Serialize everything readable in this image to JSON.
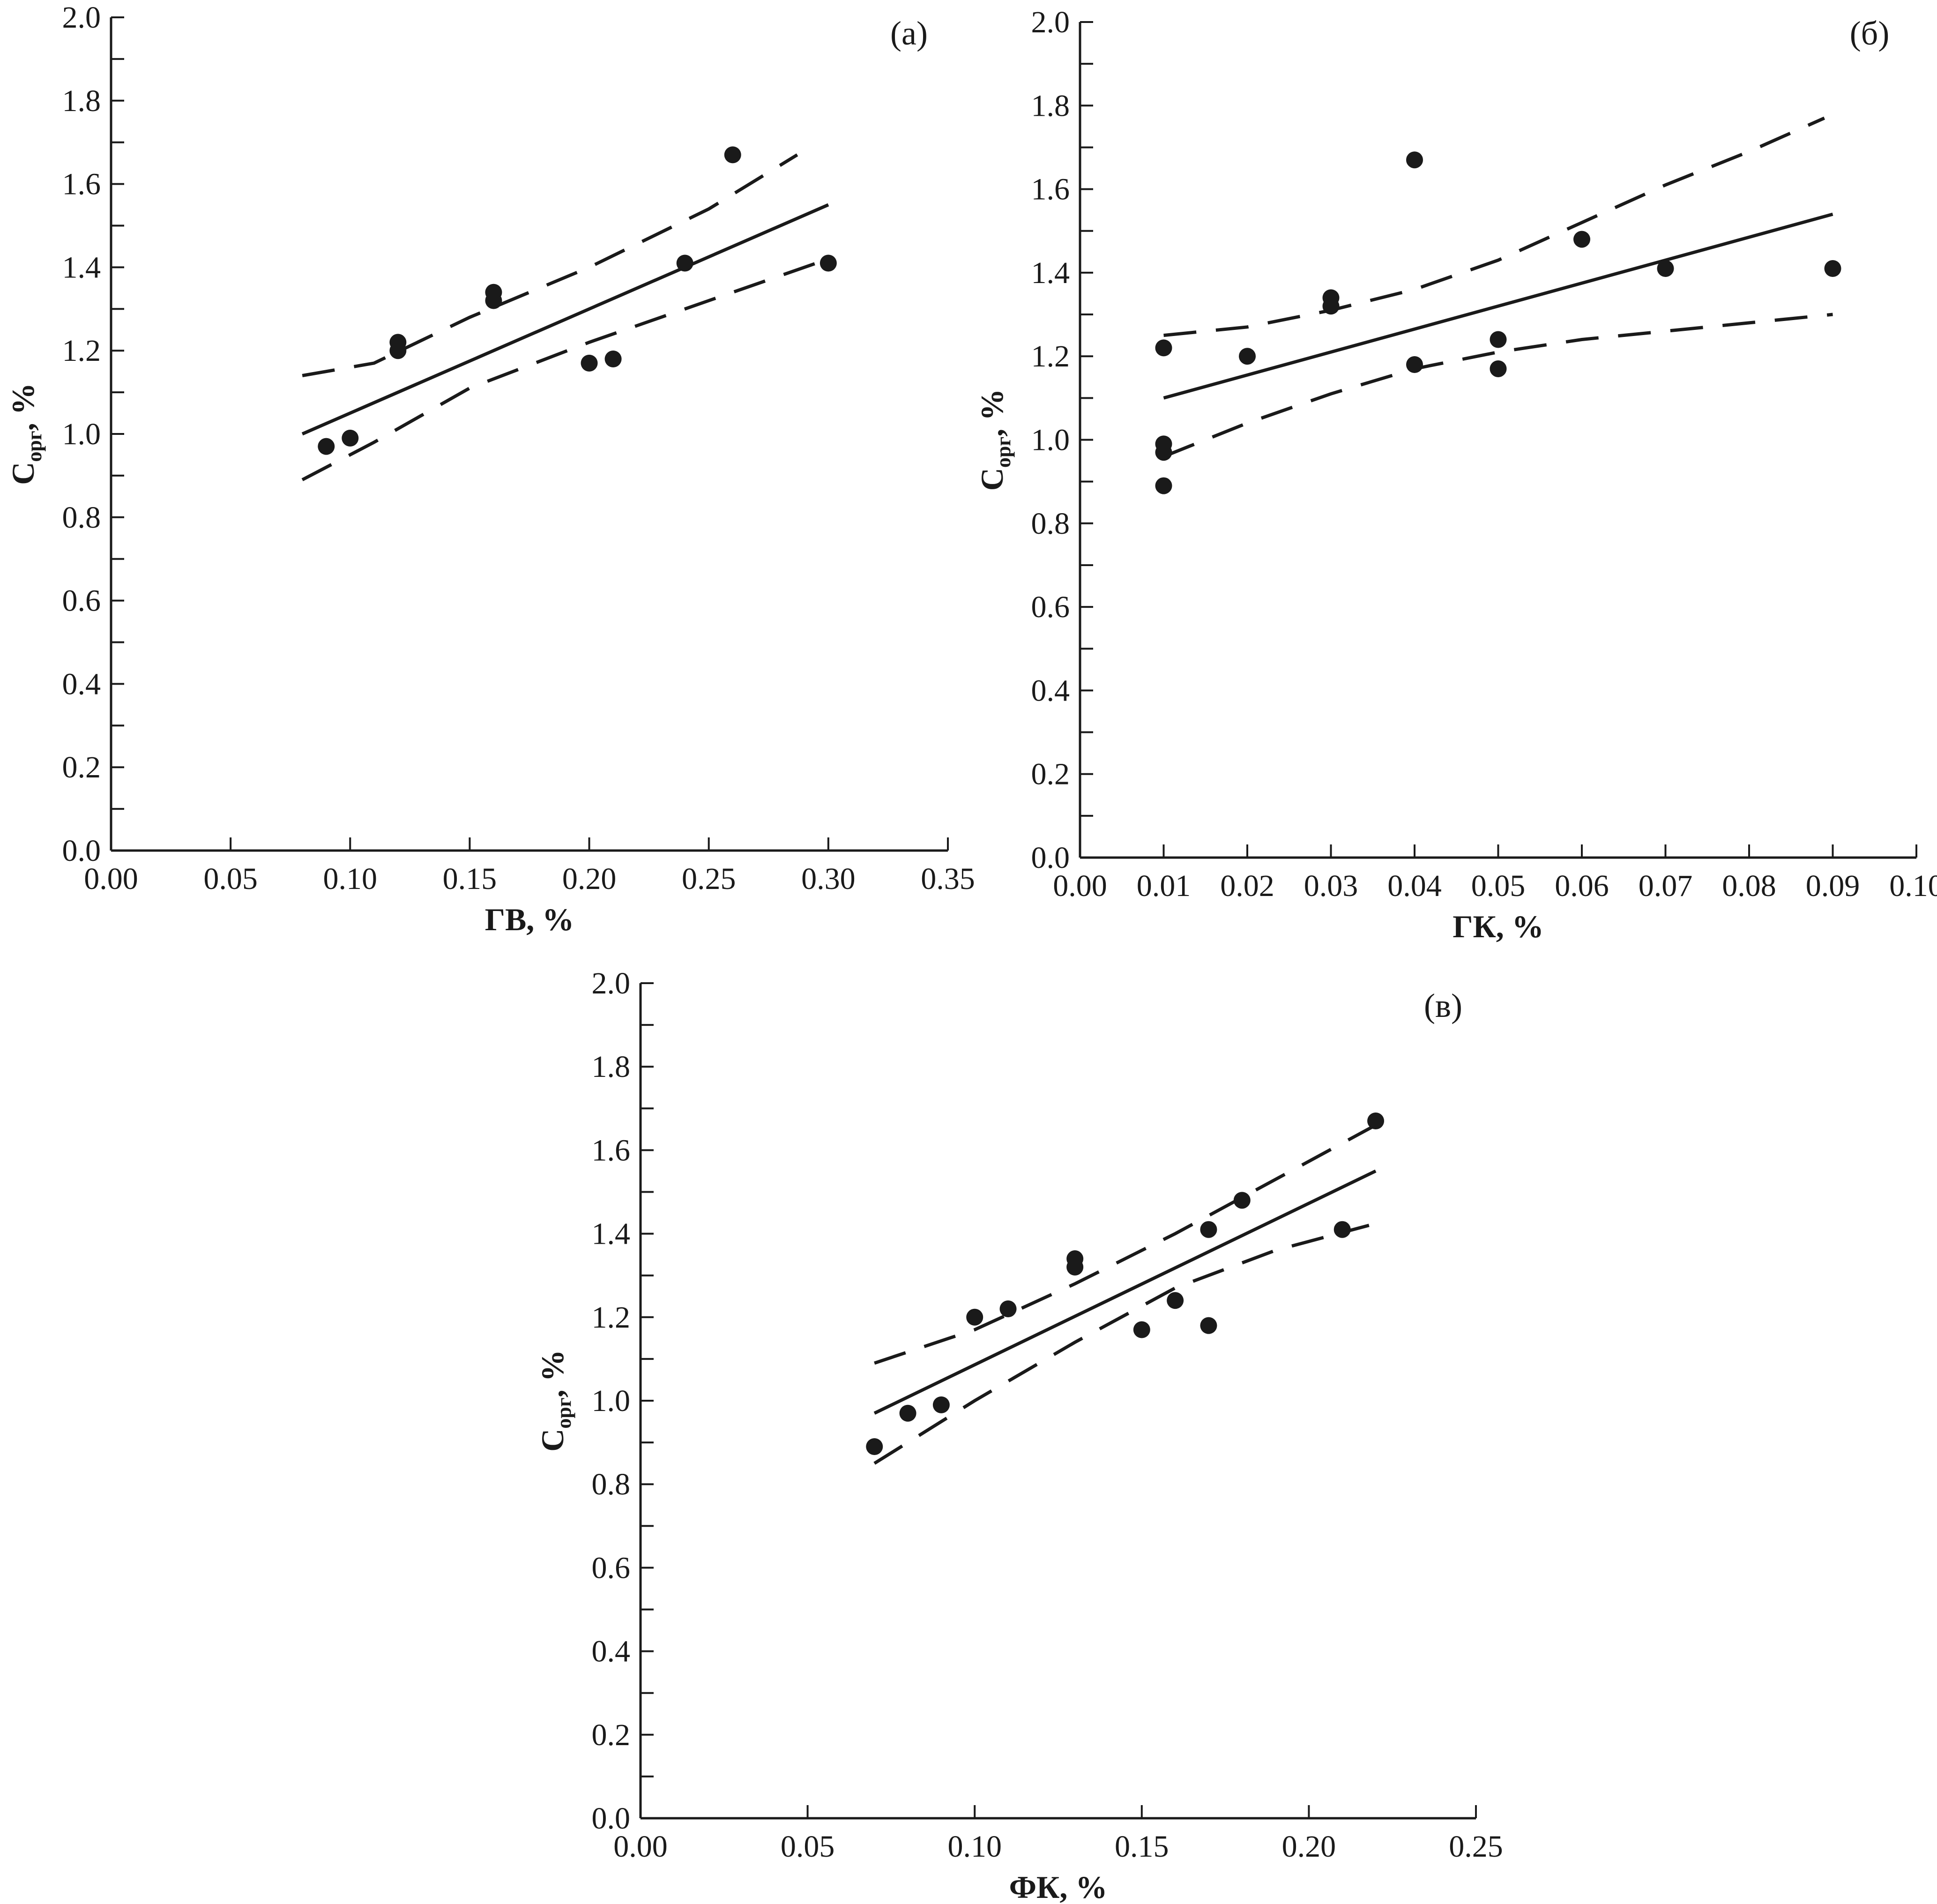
{
  "chart_data": [
    {
      "type": "scatter",
      "panel_label": "(а)",
      "xlabel": "ГВ, %",
      "ylabel_main": "C",
      "ylabel_sub": "орг",
      "ylabel_tail": ", %",
      "xlim": [
        0.0,
        0.35
      ],
      "ylim": [
        0.0,
        2.0
      ],
      "x_ticks": [
        "0.00",
        "0.05",
        "0.10",
        "0.15",
        "0.20",
        "0.25",
        "0.30",
        "0.35"
      ],
      "y_ticks": [
        "0.0",
        "0.2",
        "0.4",
        "0.6",
        "0.8",
        "1.0",
        "1.2",
        "1.4",
        "1.6",
        "1.8",
        "2.0"
      ],
      "points": [
        {
          "x": 0.09,
          "y": 0.97
        },
        {
          "x": 0.1,
          "y": 0.99
        },
        {
          "x": 0.12,
          "y": 1.2
        },
        {
          "x": 0.12,
          "y": 1.22
        },
        {
          "x": 0.16,
          "y": 1.32
        },
        {
          "x": 0.16,
          "y": 1.34
        },
        {
          "x": 0.2,
          "y": 1.17
        },
        {
          "x": 0.21,
          "y": 1.18
        },
        {
          "x": 0.24,
          "y": 1.41
        },
        {
          "x": 0.26,
          "y": 1.67
        },
        {
          "x": 0.3,
          "y": 1.41
        }
      ],
      "fit_line": [
        {
          "x": 0.08,
          "y": 1.0
        },
        {
          "x": 0.3,
          "y": 1.55
        }
      ],
      "upper_band": [
        {
          "x": 0.08,
          "y": 1.14
        },
        {
          "x": 0.11,
          "y": 1.17
        },
        {
          "x": 0.15,
          "y": 1.28
        },
        {
          "x": 0.2,
          "y": 1.4
        },
        {
          "x": 0.25,
          "y": 1.54
        },
        {
          "x": 0.287,
          "y": 1.67
        }
      ],
      "lower_band": [
        {
          "x": 0.08,
          "y": 0.89
        },
        {
          "x": 0.11,
          "y": 0.98
        },
        {
          "x": 0.15,
          "y": 1.11
        },
        {
          "x": 0.2,
          "y": 1.22
        },
        {
          "x": 0.25,
          "y": 1.32
        },
        {
          "x": 0.3,
          "y": 1.42
        }
      ]
    },
    {
      "type": "scatter",
      "panel_label": "(б)",
      "xlabel": "ГК, %",
      "ylabel_main": "C",
      "ylabel_sub": "орг",
      "ylabel_tail": ", %",
      "xlim": [
        0.0,
        0.1
      ],
      "ylim": [
        0.0,
        2.0
      ],
      "x_ticks": [
        "0.00",
        "0.01",
        "0.02",
        "0.03",
        "0.04",
        "0.05",
        "0.06",
        "0.07",
        "0.08",
        "0.09",
        "0.10"
      ],
      "y_ticks": [
        "0.0",
        "0.2",
        "0.4",
        "0.6",
        "0.8",
        "1.0",
        "1.2",
        "1.4",
        "1.6",
        "1.8",
        "2.0"
      ],
      "points": [
        {
          "x": 0.01,
          "y": 0.89
        },
        {
          "x": 0.01,
          "y": 0.97
        },
        {
          "x": 0.01,
          "y": 0.99
        },
        {
          "x": 0.01,
          "y": 1.22
        },
        {
          "x": 0.02,
          "y": 1.2
        },
        {
          "x": 0.03,
          "y": 1.32
        },
        {
          "x": 0.03,
          "y": 1.34
        },
        {
          "x": 0.04,
          "y": 1.18
        },
        {
          "x": 0.04,
          "y": 1.67
        },
        {
          "x": 0.05,
          "y": 1.17
        },
        {
          "x": 0.05,
          "y": 1.24
        },
        {
          "x": 0.06,
          "y": 1.48
        },
        {
          "x": 0.07,
          "y": 1.41
        },
        {
          "x": 0.09,
          "y": 1.41
        }
      ],
      "fit_line": [
        {
          "x": 0.01,
          "y": 1.1
        },
        {
          "x": 0.09,
          "y": 1.54
        }
      ],
      "upper_band": [
        {
          "x": 0.01,
          "y": 1.25
        },
        {
          "x": 0.02,
          "y": 1.27
        },
        {
          "x": 0.03,
          "y": 1.31
        },
        {
          "x": 0.04,
          "y": 1.36
        },
        {
          "x": 0.05,
          "y": 1.43
        },
        {
          "x": 0.06,
          "y": 1.52
        },
        {
          "x": 0.07,
          "y": 1.61
        },
        {
          "x": 0.08,
          "y": 1.69
        },
        {
          "x": 0.089,
          "y": 1.77
        }
      ],
      "lower_band": [
        {
          "x": 0.01,
          "y": 0.96
        },
        {
          "x": 0.02,
          "y": 1.04
        },
        {
          "x": 0.03,
          "y": 1.11
        },
        {
          "x": 0.04,
          "y": 1.17
        },
        {
          "x": 0.05,
          "y": 1.21
        },
        {
          "x": 0.06,
          "y": 1.24
        },
        {
          "x": 0.07,
          "y": 1.26
        },
        {
          "x": 0.08,
          "y": 1.28
        },
        {
          "x": 0.09,
          "y": 1.3
        }
      ]
    },
    {
      "type": "scatter",
      "panel_label": "(в)",
      "xlabel": "ФК, %",
      "ylabel_main": "C",
      "ylabel_sub": "орг",
      "ylabel_tail": ", %",
      "xlim": [
        0.0,
        0.25
      ],
      "ylim": [
        0.0,
        2.0
      ],
      "x_ticks": [
        "0.00",
        "0.05",
        "0.10",
        "0.15",
        "0.20",
        "0.25"
      ],
      "y_ticks": [
        "0.0",
        "0.2",
        "0.4",
        "0.6",
        "0.8",
        "1.0",
        "1.2",
        "1.4",
        "1.6",
        "1.8",
        "2.0"
      ],
      "points": [
        {
          "x": 0.07,
          "y": 0.89
        },
        {
          "x": 0.08,
          "y": 0.97
        },
        {
          "x": 0.09,
          "y": 0.99
        },
        {
          "x": 0.1,
          "y": 1.2
        },
        {
          "x": 0.11,
          "y": 1.22
        },
        {
          "x": 0.13,
          "y": 1.32
        },
        {
          "x": 0.13,
          "y": 1.34
        },
        {
          "x": 0.15,
          "y": 1.17
        },
        {
          "x": 0.16,
          "y": 1.24
        },
        {
          "x": 0.17,
          "y": 1.18
        },
        {
          "x": 0.17,
          "y": 1.41
        },
        {
          "x": 0.18,
          "y": 1.48
        },
        {
          "x": 0.21,
          "y": 1.41
        },
        {
          "x": 0.22,
          "y": 1.67
        }
      ],
      "fit_line": [
        {
          "x": 0.07,
          "y": 0.97
        },
        {
          "x": 0.22,
          "y": 1.55
        }
      ],
      "upper_band": [
        {
          "x": 0.07,
          "y": 1.09
        },
        {
          "x": 0.1,
          "y": 1.17
        },
        {
          "x": 0.13,
          "y": 1.28
        },
        {
          "x": 0.16,
          "y": 1.4
        },
        {
          "x": 0.19,
          "y": 1.53
        },
        {
          "x": 0.22,
          "y": 1.66
        }
      ],
      "lower_band": [
        {
          "x": 0.07,
          "y": 0.85
        },
        {
          "x": 0.1,
          "y": 1.0
        },
        {
          "x": 0.13,
          "y": 1.14
        },
        {
          "x": 0.16,
          "y": 1.27
        },
        {
          "x": 0.19,
          "y": 1.36
        },
        {
          "x": 0.218,
          "y": 1.42
        }
      ]
    }
  ]
}
